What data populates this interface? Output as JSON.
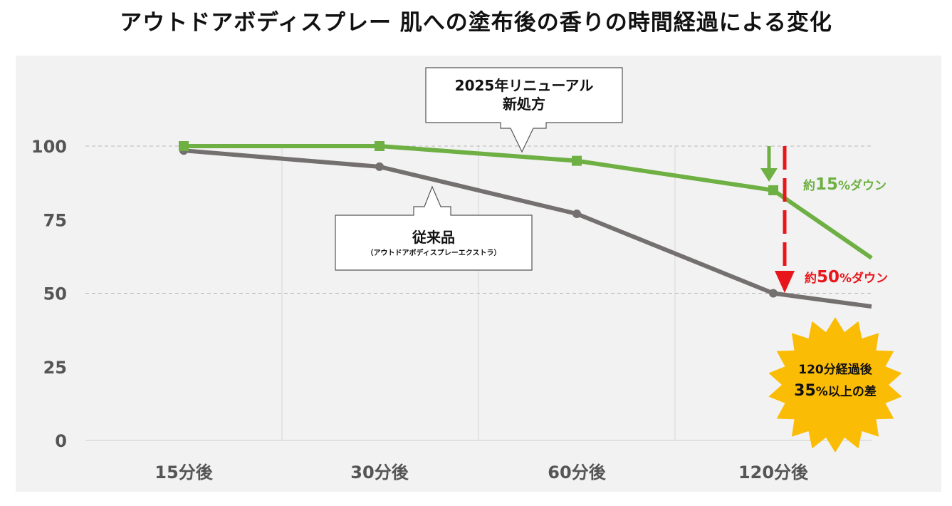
{
  "page": {
    "title": "アウトドアボディスプレー 肌への塗布後の香りの時間経過による変化"
  },
  "colors": {
    "new_series": "#6eb043",
    "old_series": "#757070",
    "red_arrow": "#e8161b",
    "burst": "#fbbc05",
    "panel": "#f2f2f2"
  },
  "chart_data": {
    "type": "line",
    "title": "アウトドアボディスプレー 肌への塗布後の香りの時間経過による変化",
    "categories": [
      "15分後",
      "30分後",
      "60分後",
      "120分後"
    ],
    "ylim": [
      0,
      100
    ],
    "yticks": [
      "0",
      "25",
      "50",
      "75",
      "100"
    ],
    "grid": "horizontal dashed at 50 and 100; vertical between categories",
    "series": [
      {
        "name": "2025年リニューアル新処方",
        "color": "#6eb043",
        "marker": "square",
        "values": [
          100,
          100,
          95,
          85
        ],
        "trailing_value": 62
      },
      {
        "name": "従来品（アウトドアボディスプレーエクストラ）",
        "color": "#757070",
        "marker": "circle",
        "values": [
          98.5,
          93,
          77,
          50
        ],
        "trailing_value": 45.5
      }
    ],
    "callouts": {
      "new": {
        "line1": "2025年リニューアル",
        "line2": "新処方"
      },
      "old": {
        "line1": "従来品",
        "line2": "（アウトドアボディスプレーエクストラ）"
      }
    },
    "annotations": {
      "green_prefix": "約",
      "green_number": "15",
      "green_suffix": "%ダウン",
      "red_prefix": "約",
      "red_number": "50",
      "red_suffix": "%ダウン",
      "burst_line1": "120分経過後",
      "burst_line2_number": "35",
      "burst_line2_suffix": "%以上の差"
    }
  }
}
